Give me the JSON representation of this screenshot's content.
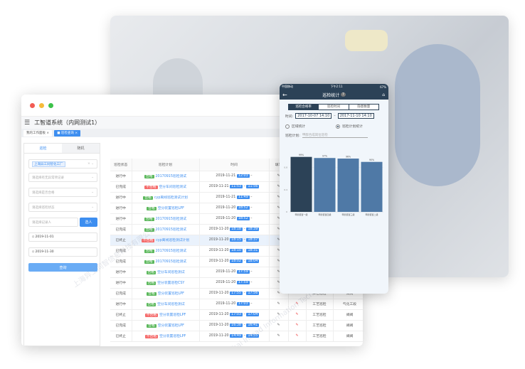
{
  "app": {
    "title": "工智道系统（内网测试1）",
    "tabs": [
      "我的工作面板",
      "巡检查询"
    ]
  },
  "filter": {
    "tabs": [
      "巡检",
      "随机"
    ],
    "factory_chip": "上海异工同智化工厂",
    "placeholders": [
      "请选择有无异常项记录",
      "请选择是否合格",
      "请选择巡检状态",
      "请选择记录人"
    ],
    "select_button": "选人",
    "start_date": "2019-11-01",
    "end_date": "2019-11-30",
    "query_button": "查询"
  },
  "table": {
    "headers": [
      "巡检状态",
      "巡检计划",
      "时间",
      "填写"
    ],
    "rows": [
      {
        "status": "进行中",
        "result": "合格",
        "plan": "20170915巡检测试",
        "date": "2019-11-21",
        "start": "12:03",
        "end": ""
      },
      {
        "status": "已完成",
        "result": "不合格",
        "plan": "空分车间巡检测试",
        "date": "2019-11-21",
        "start": "11:53",
        "end": "11:56"
      },
      {
        "status": "进行中",
        "result": "合格",
        "plan": "cyp离线巡检测试计划",
        "date": "2019-11-21",
        "start": "11:49",
        "end": ""
      },
      {
        "status": "进行中",
        "result": "合格",
        "plan": "空分装置巡检LPF",
        "date": "2019-11-20",
        "start": "18:52",
        "end": ""
      },
      {
        "status": "进行中",
        "result": "合格",
        "plan": "20170915巡检测试",
        "date": "2019-11-20",
        "start": "18:52",
        "end": ""
      },
      {
        "status": "已完成",
        "result": "合格",
        "plan": "20170915巡检测试",
        "date": "2019-11-20",
        "start": "18:18",
        "end": "18:39"
      },
      {
        "status": "已终止",
        "result": "不合格",
        "plan": "cyp离线巡检测试计划",
        "date": "2019-11-20",
        "start": "18:15",
        "end": "18:37"
      },
      {
        "status": "已完成",
        "result": "合格",
        "plan": "20170915巡检测试",
        "date": "2019-11-20",
        "start": "18:10",
        "end": "18:31"
      },
      {
        "status": "已完成",
        "result": "合格",
        "plan": "20170915巡检测试",
        "date": "2019-11-20",
        "start": "18:02",
        "end": "18:04"
      },
      {
        "status": "进行中",
        "result": "合格",
        "plan": "空分车间巡检测试",
        "date": "2019-11-20",
        "start": "17:59",
        "end": ""
      },
      {
        "status": "进行中",
        "result": "合格",
        "plan": "空分装置巡检CSY",
        "date": "2019-11-20",
        "start": "17:59",
        "end": ""
      },
      {
        "status": "已完成",
        "result": "合格",
        "plan": "空分装置巡检LPF",
        "date": "2019-11-20",
        "start": "17:55",
        "end": "17:56",
        "type": "工艺巡检",
        "area": "阀阀"
      },
      {
        "status": "进行中",
        "result": "合格",
        "plan": "空分车间巡检测试",
        "date": "2019-11-20",
        "start": "17:03",
        "end": "",
        "type": "工艺巡检",
        "area": "气化工段"
      },
      {
        "status": "已终止",
        "result": "不合格",
        "plan": "空分装置巡检LPF",
        "date": "2019-11-20",
        "start": "17:03",
        "end": "17:04",
        "type": "工艺巡检",
        "area": "阀阀"
      },
      {
        "status": "已完成",
        "result": "合格",
        "plan": "空分装置巡检LPF",
        "date": "2019-11-20",
        "start": "16:38",
        "end": "16:41",
        "type": "工艺巡检",
        "area": "阀阀"
      },
      {
        "status": "已终止",
        "result": "不合格",
        "plan": "空分装置巡检LPF",
        "date": "2019-11-20",
        "start": "14:49",
        "end": "14:55",
        "type": "工艺巡检",
        "area": "阀阀"
      }
    ]
  },
  "phone": {
    "carrier": "中国移动",
    "time": "下午2:11",
    "battery": "67%",
    "title": "巡检统计",
    "segments": [
      "巡检合格率",
      "巡检时间",
      "隐患数量"
    ],
    "time_label": "时间:",
    "date_from": "2017-10-07 14:10",
    "date_to": "2017-11-10 14:10",
    "radio_area": "区域统计",
    "radio_plan": "巡检计划统计",
    "plan_label": "巡检计划:",
    "plan_placeholder": "甲醇合成岗位巡检"
  },
  "chart_data": {
    "type": "bar",
    "categories": [
      "甲醇装置一级",
      "甲醇装置四级",
      "甲醇装置三级",
      "甲醇装置二级"
    ],
    "values": [
      0.99,
      0.97,
      0.96,
      0.9
    ],
    "labels": [
      "99%",
      "97%",
      "96%",
      "90%"
    ],
    "yticks": [
      "0",
      "0.4",
      "0.8"
    ],
    "ylim": [
      0,
      1.05
    ],
    "colors": [
      "#2c4257",
      "#4f79a6",
      "#4f79a6",
      "#4f79a6"
    ]
  }
}
